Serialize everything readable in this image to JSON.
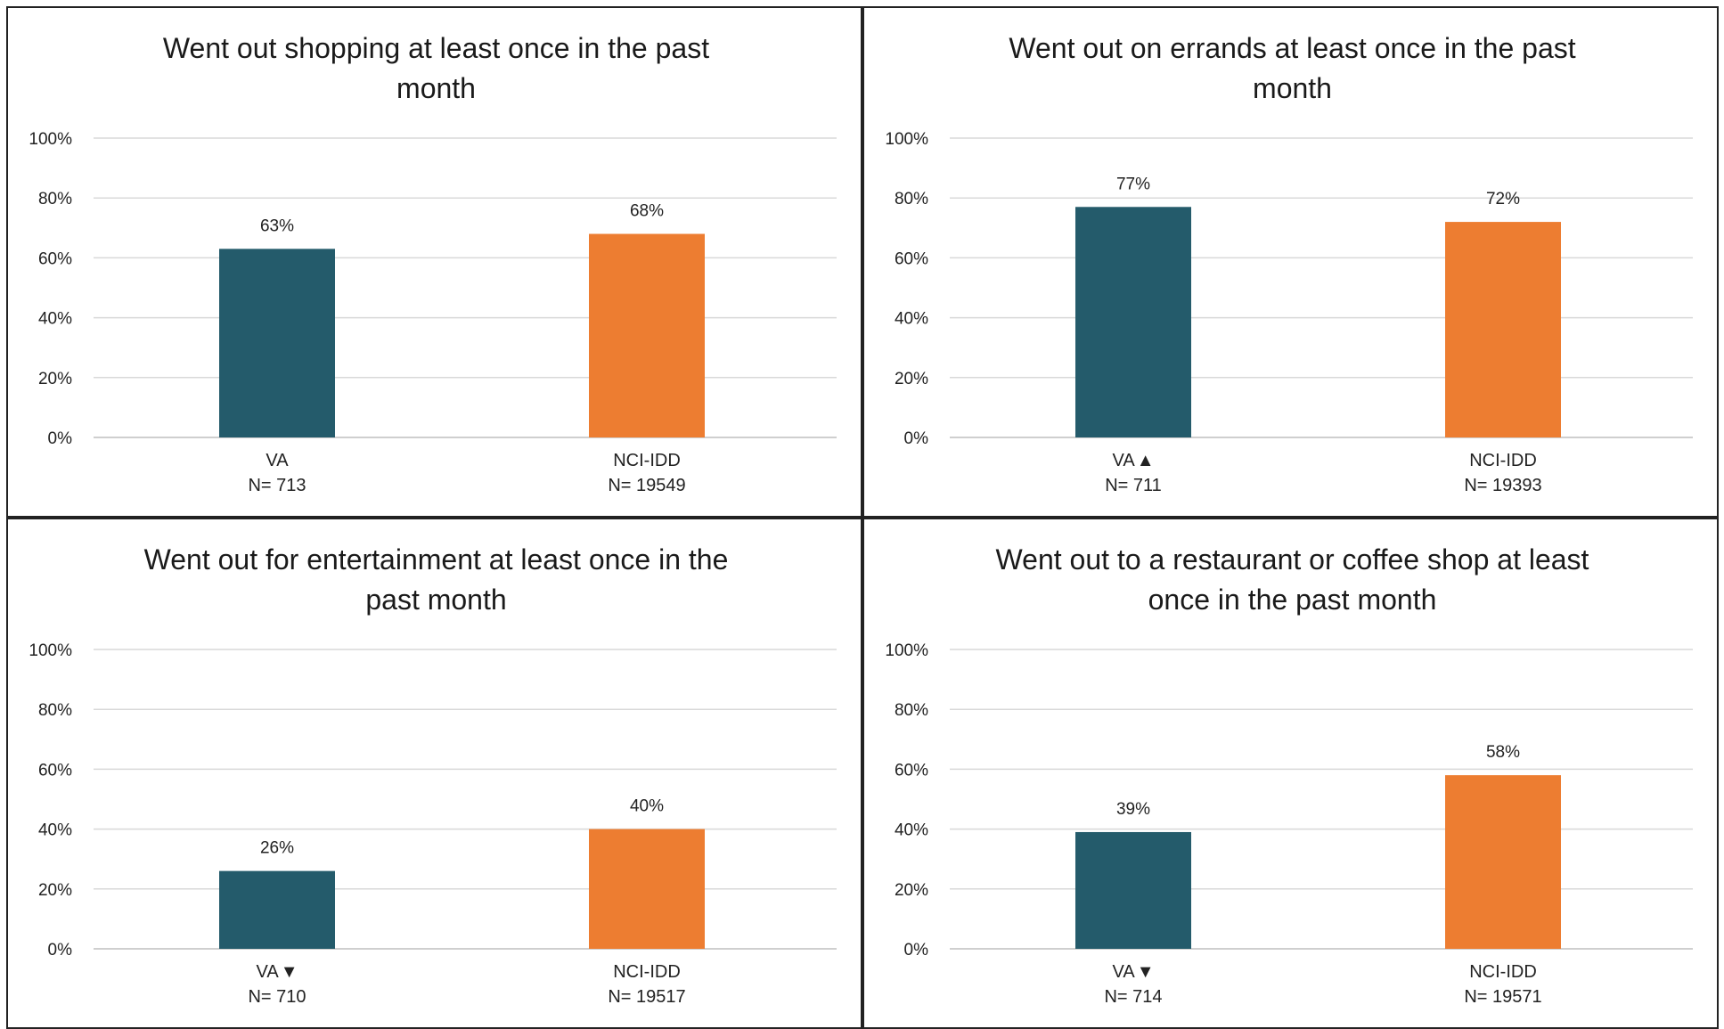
{
  "chart_data": [
    {
      "type": "bar",
      "title_lines": [
        "Went out shopping at least once in the past",
        "month"
      ],
      "categories": [
        "VA",
        "NCI-IDD"
      ],
      "category_markers": [
        "",
        ""
      ],
      "category_n": [
        "N= 713",
        "N= 19549"
      ],
      "values": [
        63,
        68
      ],
      "value_labels": [
        "63%",
        "68%"
      ],
      "colors": [
        "#245B6B",
        "#ED7D31"
      ],
      "yticks": [
        "0%",
        "20%",
        "40%",
        "60%",
        "80%",
        "100%"
      ],
      "ylim": [
        0,
        100
      ],
      "grid": true
    },
    {
      "type": "bar",
      "title_lines": [
        "Went out on errands at least once in the past",
        "month"
      ],
      "categories": [
        "VA",
        "NCI-IDD"
      ],
      "category_markers": [
        "▲",
        ""
      ],
      "category_n": [
        "N= 711",
        "N= 19393"
      ],
      "values": [
        77,
        72
      ],
      "value_labels": [
        "77%",
        "72%"
      ],
      "colors": [
        "#245B6B",
        "#ED7D31"
      ],
      "yticks": [
        "0%",
        "20%",
        "40%",
        "60%",
        "80%",
        "100%"
      ],
      "ylim": [
        0,
        100
      ],
      "grid": true
    },
    {
      "type": "bar",
      "title_lines": [
        "Went out for entertainment at least once in the",
        "past month"
      ],
      "categories": [
        "VA",
        "NCI-IDD"
      ],
      "category_markers": [
        "▼",
        ""
      ],
      "category_n": [
        "N= 710",
        "N= 19517"
      ],
      "values": [
        26,
        40
      ],
      "value_labels": [
        "26%",
        "40%"
      ],
      "colors": [
        "#245B6B",
        "#ED7D31"
      ],
      "yticks": [
        "0%",
        "20%",
        "40%",
        "60%",
        "80%",
        "100%"
      ],
      "ylim": [
        0,
        100
      ],
      "grid": true
    },
    {
      "type": "bar",
      "title_lines": [
        "Went out to a restaurant or coffee shop at least",
        "once in the past month"
      ],
      "categories": [
        "VA",
        "NCI-IDD"
      ],
      "category_markers": [
        "▼",
        ""
      ],
      "category_n": [
        "N= 714",
        "N= 19571"
      ],
      "values": [
        39,
        58
      ],
      "value_labels": [
        "39%",
        "58%"
      ],
      "colors": [
        "#245B6B",
        "#ED7D31"
      ],
      "yticks": [
        "0%",
        "20%",
        "40%",
        "60%",
        "80%",
        "100%"
      ],
      "ylim": [
        0,
        100
      ],
      "grid": true
    }
  ]
}
